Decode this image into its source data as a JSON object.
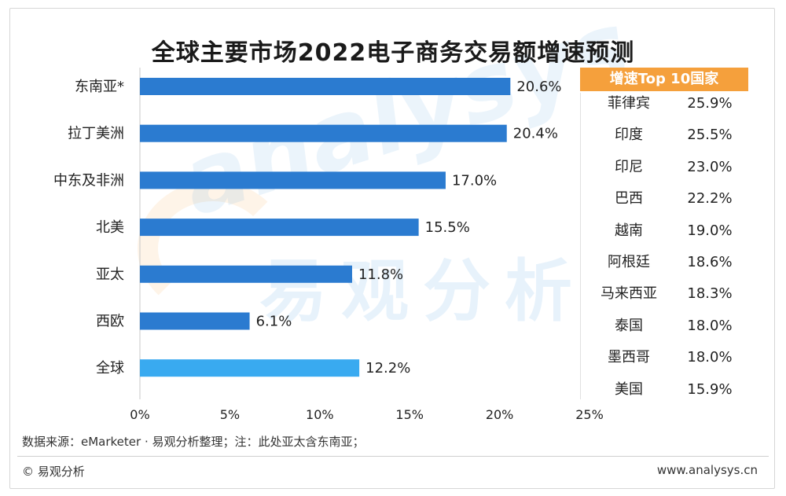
{
  "title": "全球主要市场2022电子商务交易额增速预测",
  "chart_data": {
    "type": "bar",
    "orientation": "horizontal",
    "categories": [
      "东南亚*",
      "拉丁美洲",
      "中东及非洲",
      "北美",
      "亚太",
      "西欧",
      "全球"
    ],
    "values": [
      20.6,
      20.4,
      17.0,
      15.5,
      11.8,
      6.1,
      12.2
    ],
    "value_labels": [
      "20.6%",
      "20.4%",
      "17.0%",
      "15.5%",
      "11.8%",
      "6.1%",
      "12.2%"
    ],
    "highlight_category": "全球",
    "xlim": [
      0,
      25
    ],
    "xticks": [
      "0%",
      "5%",
      "10%",
      "15%",
      "20%",
      "25%"
    ],
    "xlabel": "",
    "ylabel": "",
    "colors": {
      "bar": "#2b7bd0",
      "highlight": "#39aaf0",
      "axis": "#c8c8c8"
    }
  },
  "side_table": {
    "header": "增速Top 10国家",
    "header_color": "#f5a03c",
    "rows": [
      {
        "country": "菲律宾",
        "value": "25.9%"
      },
      {
        "country": "印度",
        "value": "25.5%"
      },
      {
        "country": "印尼",
        "value": "23.0%"
      },
      {
        "country": "巴西",
        "value": "22.2%"
      },
      {
        "country": "越南",
        "value": "19.0%"
      },
      {
        "country": "阿根廷",
        "value": "18.6%"
      },
      {
        "country": "马来西亚",
        "value": "18.3%"
      },
      {
        "country": "泰国",
        "value": "18.0%"
      },
      {
        "country": "墨西哥",
        "value": "18.0%"
      },
      {
        "country": "美国",
        "value": "15.9%"
      }
    ]
  },
  "footer": {
    "source": "数据来源：eMarketer · 易观分析整理；注：此处亚太含东南亚；",
    "copyright": "© 易观分析",
    "website": "www.analysys.cn"
  },
  "watermark": {
    "text_cn": "易观分析",
    "text_en": "analysys"
  }
}
